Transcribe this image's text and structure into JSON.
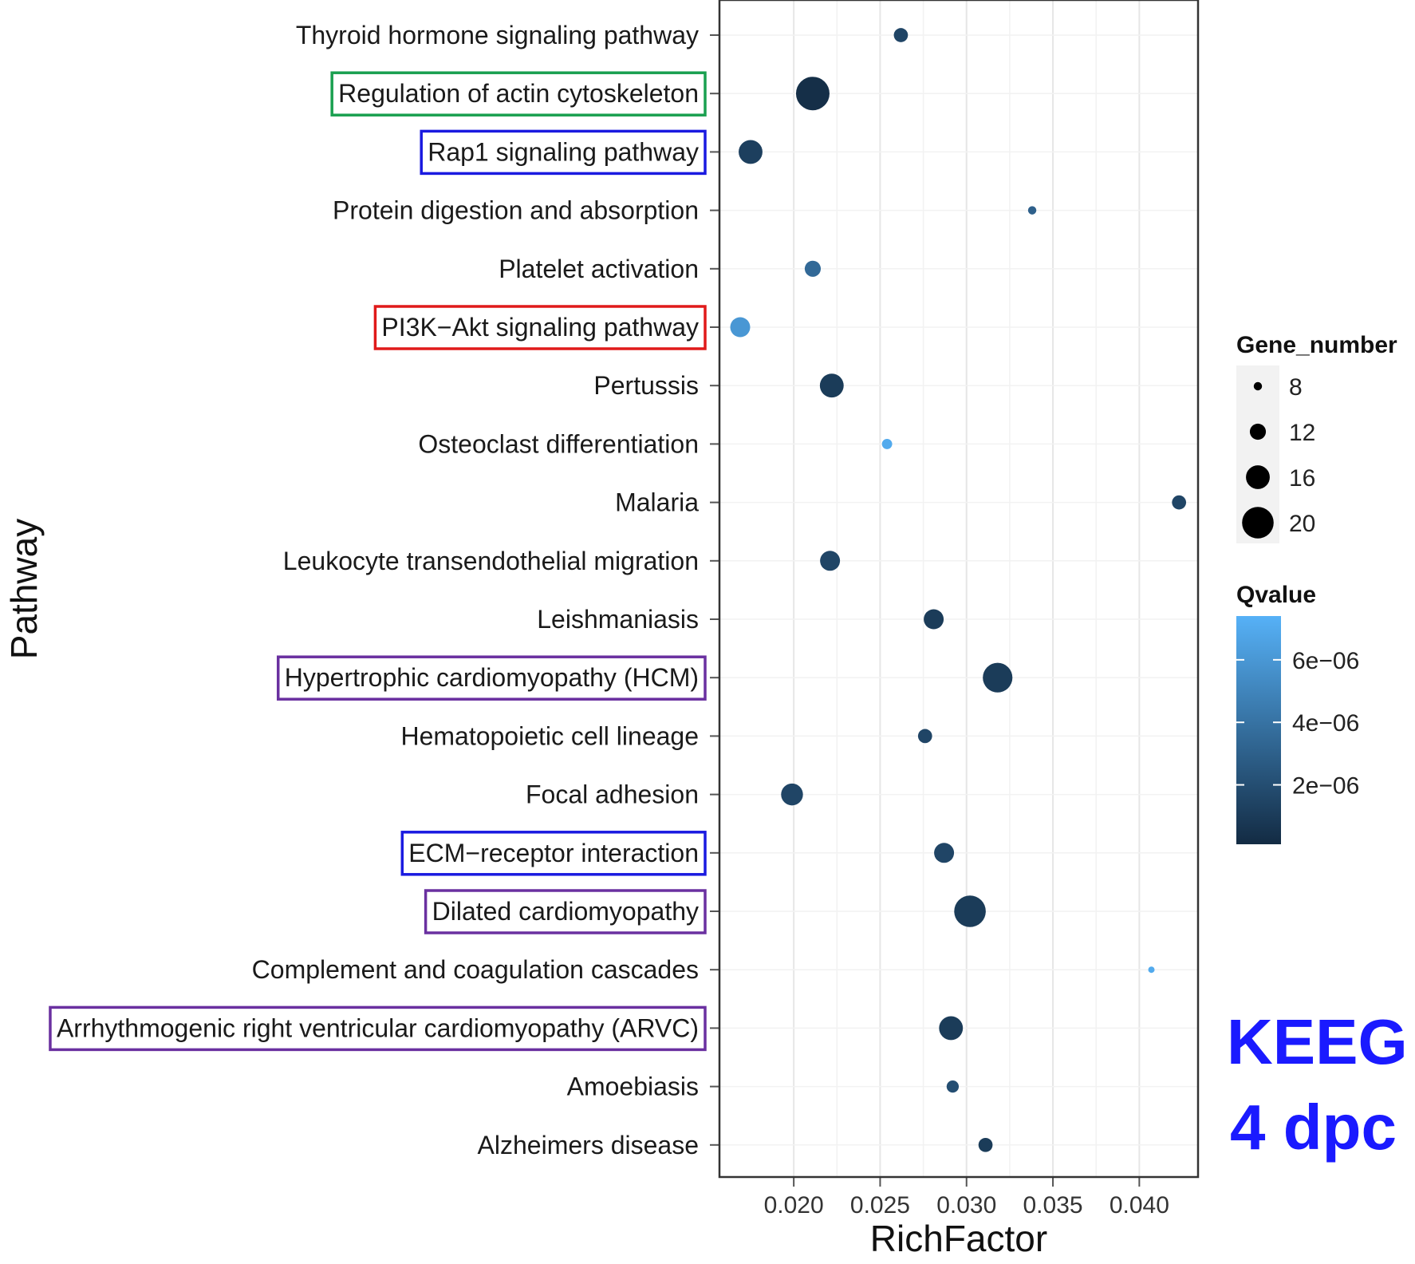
{
  "chart_data": {
    "type": "scatter",
    "xlabel": "RichFactor",
    "ylabel": "Pathway",
    "xlim": [
      0.0157,
      0.0434
    ],
    "xticks": [
      0.02,
      0.025,
      0.03,
      0.035,
      0.04
    ],
    "xtick_labels": [
      "0.020",
      "0.025",
      "0.030",
      "0.035",
      "0.040"
    ],
    "grid": true,
    "categories": [
      "Thyroid hormone signaling pathway",
      "Regulation of actin cytoskeleton",
      "Rap1 signaling pathway",
      "Protein digestion and absorption",
      "Platelet activation",
      "PI3K−Akt signaling pathway",
      "Pertussis",
      "Osteoclast differentiation",
      "Malaria",
      "Leukocyte transendothelial migration",
      "Leishmaniasis",
      "Hypertrophic cardiomyopathy (HCM)",
      "Hematopoietic cell lineage",
      "Focal adhesion",
      "ECM−receptor interaction",
      "Dilated cardiomyopathy",
      "Complement and coagulation cascades",
      "Arrhythmogenic right ventricular cardiomyopathy (ARVC)",
      "Amoebiasis",
      "Alzheimers disease"
    ],
    "points": [
      {
        "pathway": "Thyroid hormone signaling pathway",
        "rich_factor": 0.0262,
        "gene_number": 11,
        "qvalue": 1.5e-06
      },
      {
        "pathway": "Regulation of actin cytoskeleton",
        "rich_factor": 0.0211,
        "gene_number": 21,
        "qvalue": 3e-07
      },
      {
        "pathway": "Rap1 signaling pathway",
        "rich_factor": 0.0175,
        "gene_number": 16,
        "qvalue": 1.2e-06
      },
      {
        "pathway": "Protein digestion and absorption",
        "rich_factor": 0.0338,
        "gene_number": 8,
        "qvalue": 3e-06
      },
      {
        "pathway": "Platelet activation",
        "rich_factor": 0.0211,
        "gene_number": 12,
        "qvalue": 3.5e-06
      },
      {
        "pathway": "PI3K−Akt signaling pathway",
        "rich_factor": 0.0169,
        "gene_number": 14,
        "qvalue": 6e-06
      },
      {
        "pathway": "Pertussis",
        "rich_factor": 0.0222,
        "gene_number": 16,
        "qvalue": 1e-06
      },
      {
        "pathway": "Osteoclast differentiation",
        "rich_factor": 0.0254,
        "gene_number": 9,
        "qvalue": 7e-06
      },
      {
        "pathway": "Malaria",
        "rich_factor": 0.0423,
        "gene_number": 11,
        "qvalue": 1.5e-06
      },
      {
        "pathway": "Leukocyte transendothelial migration",
        "rich_factor": 0.0221,
        "gene_number": 14,
        "qvalue": 1.5e-06
      },
      {
        "pathway": "Leishmaniasis",
        "rich_factor": 0.0281,
        "gene_number": 14,
        "qvalue": 1e-06
      },
      {
        "pathway": "Hypertrophic cardiomyopathy (HCM)",
        "rich_factor": 0.0318,
        "gene_number": 19,
        "qvalue": 1e-06
      },
      {
        "pathway": "Hematopoietic cell lineage",
        "rich_factor": 0.0276,
        "gene_number": 11,
        "qvalue": 1.5e-06
      },
      {
        "pathway": "Focal adhesion",
        "rich_factor": 0.0199,
        "gene_number": 15,
        "qvalue": 1.5e-06
      },
      {
        "pathway": "ECM−receptor interaction",
        "rich_factor": 0.0287,
        "gene_number": 14,
        "qvalue": 1.5e-06
      },
      {
        "pathway": "Dilated cardiomyopathy",
        "rich_factor": 0.0302,
        "gene_number": 20,
        "qvalue": 1e-06
      },
      {
        "pathway": "Complement and coagulation cascades",
        "rich_factor": 0.0407,
        "gene_number": 7,
        "qvalue": 7e-06
      },
      {
        "pathway": "Arrhythmogenic right ventricular cardiomyopathy (ARVC)",
        "rich_factor": 0.0291,
        "gene_number": 16,
        "qvalue": 1e-06
      },
      {
        "pathway": "Amoebiasis",
        "rich_factor": 0.0292,
        "gene_number": 10,
        "qvalue": 2e-06
      },
      {
        "pathway": "Alzheimers disease",
        "rich_factor": 0.0311,
        "gene_number": 11,
        "qvalue": 1e-06
      }
    ],
    "highlights": [
      {
        "pathway": "Regulation of actin cytoskeleton",
        "color": "#1aa050"
      },
      {
        "pathway": "Rap1 signaling pathway",
        "color": "#1a1ae0"
      },
      {
        "pathway": "PI3K−Akt signaling pathway",
        "color": "#e01a1a"
      },
      {
        "pathway": "Hypertrophic cardiomyopathy (HCM)",
        "color": "#6a30a0"
      },
      {
        "pathway": "ECM−receptor interaction",
        "color": "#1a1ae0"
      },
      {
        "pathway": "Dilated cardiomyopathy",
        "color": "#6a30a0"
      },
      {
        "pathway": "Arrhythmogenic right ventricular cardiomyopathy (ARVC)",
        "color": "#6a30a0"
      }
    ],
    "legend": {
      "size_title": "Gene_number",
      "size_values": [
        8,
        12,
        16,
        20
      ],
      "size_labels": [
        "8",
        "12",
        "16",
        "20"
      ],
      "color_title": "Qvalue",
      "color_range": [
        1e-07,
        7.4e-06
      ],
      "color_ticks": [
        2e-06,
        4e-06,
        6e-06
      ],
      "color_tick_labels": [
        "2e−06",
        "4e−06",
        "6e−06"
      ],
      "color_low": "#132b43",
      "color_high": "#56b1f7",
      "placement": "right"
    },
    "annotation": {
      "line1": "KEEG",
      "line2": "4 dpc",
      "color": "#1a1aff"
    }
  }
}
